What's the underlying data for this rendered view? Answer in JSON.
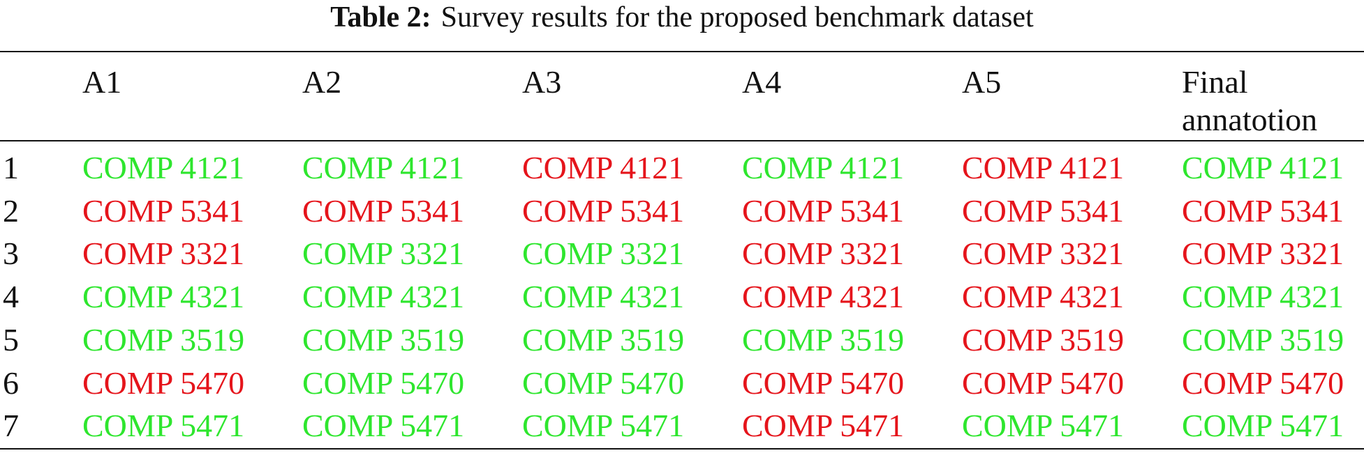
{
  "table": {
    "caption": {
      "label": "Table 2:",
      "text": "Survey results for the proposed benchmark dataset"
    },
    "columns": [
      "A1",
      "A2",
      "A3",
      "A4",
      "A5",
      "Final annatotion"
    ],
    "colors": {
      "green": "#2ee62e",
      "red": "#e5141b"
    },
    "rows": [
      {
        "label": "1",
        "cells": [
          {
            "text": "COMP 4121",
            "color": "green"
          },
          {
            "text": "COMP 4121",
            "color": "green"
          },
          {
            "text": "COMP 4121",
            "color": "red"
          },
          {
            "text": "COMP 4121",
            "color": "green"
          },
          {
            "text": "COMP 4121",
            "color": "red"
          },
          {
            "text": "COMP 4121",
            "color": "green"
          }
        ]
      },
      {
        "label": "2",
        "cells": [
          {
            "text": "COMP 5341",
            "color": "red"
          },
          {
            "text": "COMP 5341",
            "color": "red"
          },
          {
            "text": "COMP 5341",
            "color": "red"
          },
          {
            "text": "COMP 5341",
            "color": "red"
          },
          {
            "text": "COMP 5341",
            "color": "red"
          },
          {
            "text": "COMP 5341",
            "color": "red"
          }
        ]
      },
      {
        "label": "3",
        "cells": [
          {
            "text": "COMP 3321",
            "color": "red"
          },
          {
            "text": "COMP 3321",
            "color": "green"
          },
          {
            "text": "COMP 3321",
            "color": "green"
          },
          {
            "text": "COMP 3321",
            "color": "red"
          },
          {
            "text": "COMP 3321",
            "color": "red"
          },
          {
            "text": "COMP 3321",
            "color": "red"
          }
        ]
      },
      {
        "label": "4",
        "cells": [
          {
            "text": "COMP 4321",
            "color": "green"
          },
          {
            "text": "COMP 4321",
            "color": "green"
          },
          {
            "text": "COMP 4321",
            "color": "green"
          },
          {
            "text": "COMP 4321",
            "color": "red"
          },
          {
            "text": "COMP 4321",
            "color": "red"
          },
          {
            "text": "COMP 4321",
            "color": "green"
          }
        ]
      },
      {
        "label": "5",
        "cells": [
          {
            "text": "COMP 3519",
            "color": "green"
          },
          {
            "text": "COMP 3519",
            "color": "green"
          },
          {
            "text": "COMP 3519",
            "color": "green"
          },
          {
            "text": "COMP 3519",
            "color": "green"
          },
          {
            "text": "COMP 3519",
            "color": "red"
          },
          {
            "text": "COMP 3519",
            "color": "green"
          }
        ]
      },
      {
        "label": "6",
        "cells": [
          {
            "text": "COMP 5470",
            "color": "red"
          },
          {
            "text": "COMP 5470",
            "color": "green"
          },
          {
            "text": "COMP 5470",
            "color": "green"
          },
          {
            "text": "COMP 5470",
            "color": "red"
          },
          {
            "text": "COMP 5470",
            "color": "red"
          },
          {
            "text": "COMP 5470",
            "color": "red"
          }
        ]
      },
      {
        "label": "7",
        "cells": [
          {
            "text": "COMP 5471",
            "color": "green"
          },
          {
            "text": "COMP 5471",
            "color": "green"
          },
          {
            "text": "COMP 5471",
            "color": "green"
          },
          {
            "text": "COMP 5471",
            "color": "red"
          },
          {
            "text": "COMP 5471",
            "color": "green"
          },
          {
            "text": "COMP 5471",
            "color": "green"
          }
        ]
      }
    ]
  }
}
